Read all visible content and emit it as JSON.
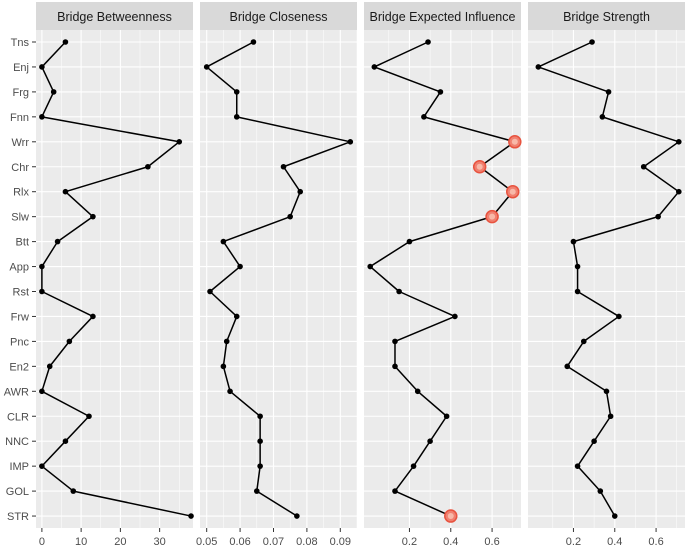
{
  "chart_data": {
    "type": "line",
    "categories": [
      "Tns",
      "Enj",
      "Frg",
      "Fnn",
      "Wrr",
      "Chr",
      "Rlx",
      "Slw",
      "Btt",
      "App",
      "Rst",
      "Frw",
      "Pnc",
      "En2",
      "AWR",
      "CLR",
      "NNC",
      "IMP",
      "GOL",
      "STR"
    ],
    "panels": [
      {
        "title": "Bridge Betweenness",
        "xlim": [
          -1.5,
          38.5
        ],
        "ticks": [
          0,
          10,
          20,
          30
        ],
        "tick_labels": [
          "0",
          "10",
          "20",
          "30"
        ],
        "values": [
          6,
          0,
          3,
          0,
          35,
          27,
          6,
          13,
          4,
          0,
          0,
          13,
          7,
          2,
          0,
          12,
          6,
          0,
          8,
          38
        ],
        "highlight": []
      },
      {
        "title": "Bridge Closeness",
        "xlim": [
          0.048,
          0.095
        ],
        "ticks": [
          0.05,
          0.06,
          0.07,
          0.08,
          0.09
        ],
        "tick_labels": [
          "0.05",
          "0.06",
          "0.07",
          "0.08",
          "0.09"
        ],
        "values": [
          0.064,
          0.05,
          0.059,
          0.059,
          0.093,
          0.073,
          0.078,
          0.075,
          0.055,
          0.06,
          0.051,
          0.059,
          0.056,
          0.055,
          0.057,
          0.066,
          0.066,
          0.066,
          0.065,
          0.077
        ],
        "highlight": []
      },
      {
        "title": "Bridge Expected Influence",
        "xlim": [
          -0.02,
          0.74
        ],
        "ticks": [
          0.2,
          0.4,
          0.6
        ],
        "tick_labels": [
          "0.2",
          "0.4",
          "0.6"
        ],
        "values": [
          0.29,
          0.03,
          0.35,
          0.27,
          0.71,
          0.54,
          0.7,
          0.6,
          0.2,
          0.01,
          0.15,
          0.42,
          0.13,
          0.13,
          0.24,
          0.38,
          0.3,
          0.22,
          0.13,
          0.4
        ],
        "highlight": [
          4,
          5,
          6,
          7,
          19
        ]
      },
      {
        "title": "Bridge Strength",
        "xlim": [
          -0.02,
          0.74
        ],
        "ticks": [
          0.2,
          0.4,
          0.6
        ],
        "tick_labels": [
          "0.2",
          "0.4",
          "0.6"
        ],
        "values": [
          0.29,
          0.03,
          0.37,
          0.34,
          0.71,
          0.54,
          0.71,
          0.61,
          0.2,
          0.22,
          0.22,
          0.42,
          0.25,
          0.17,
          0.36,
          0.38,
          0.3,
          0.22,
          0.33,
          0.4
        ],
        "highlight": []
      }
    ],
    "grid": true,
    "legend": "none",
    "colors": {
      "panel_background": "#ebebeb",
      "strip_background": "#d9d9d9",
      "grid": "#ffffff",
      "line": "#000000",
      "point": "#000000",
      "highlight_fill": "#f08070",
      "highlight_stroke": "#e8533f"
    }
  }
}
